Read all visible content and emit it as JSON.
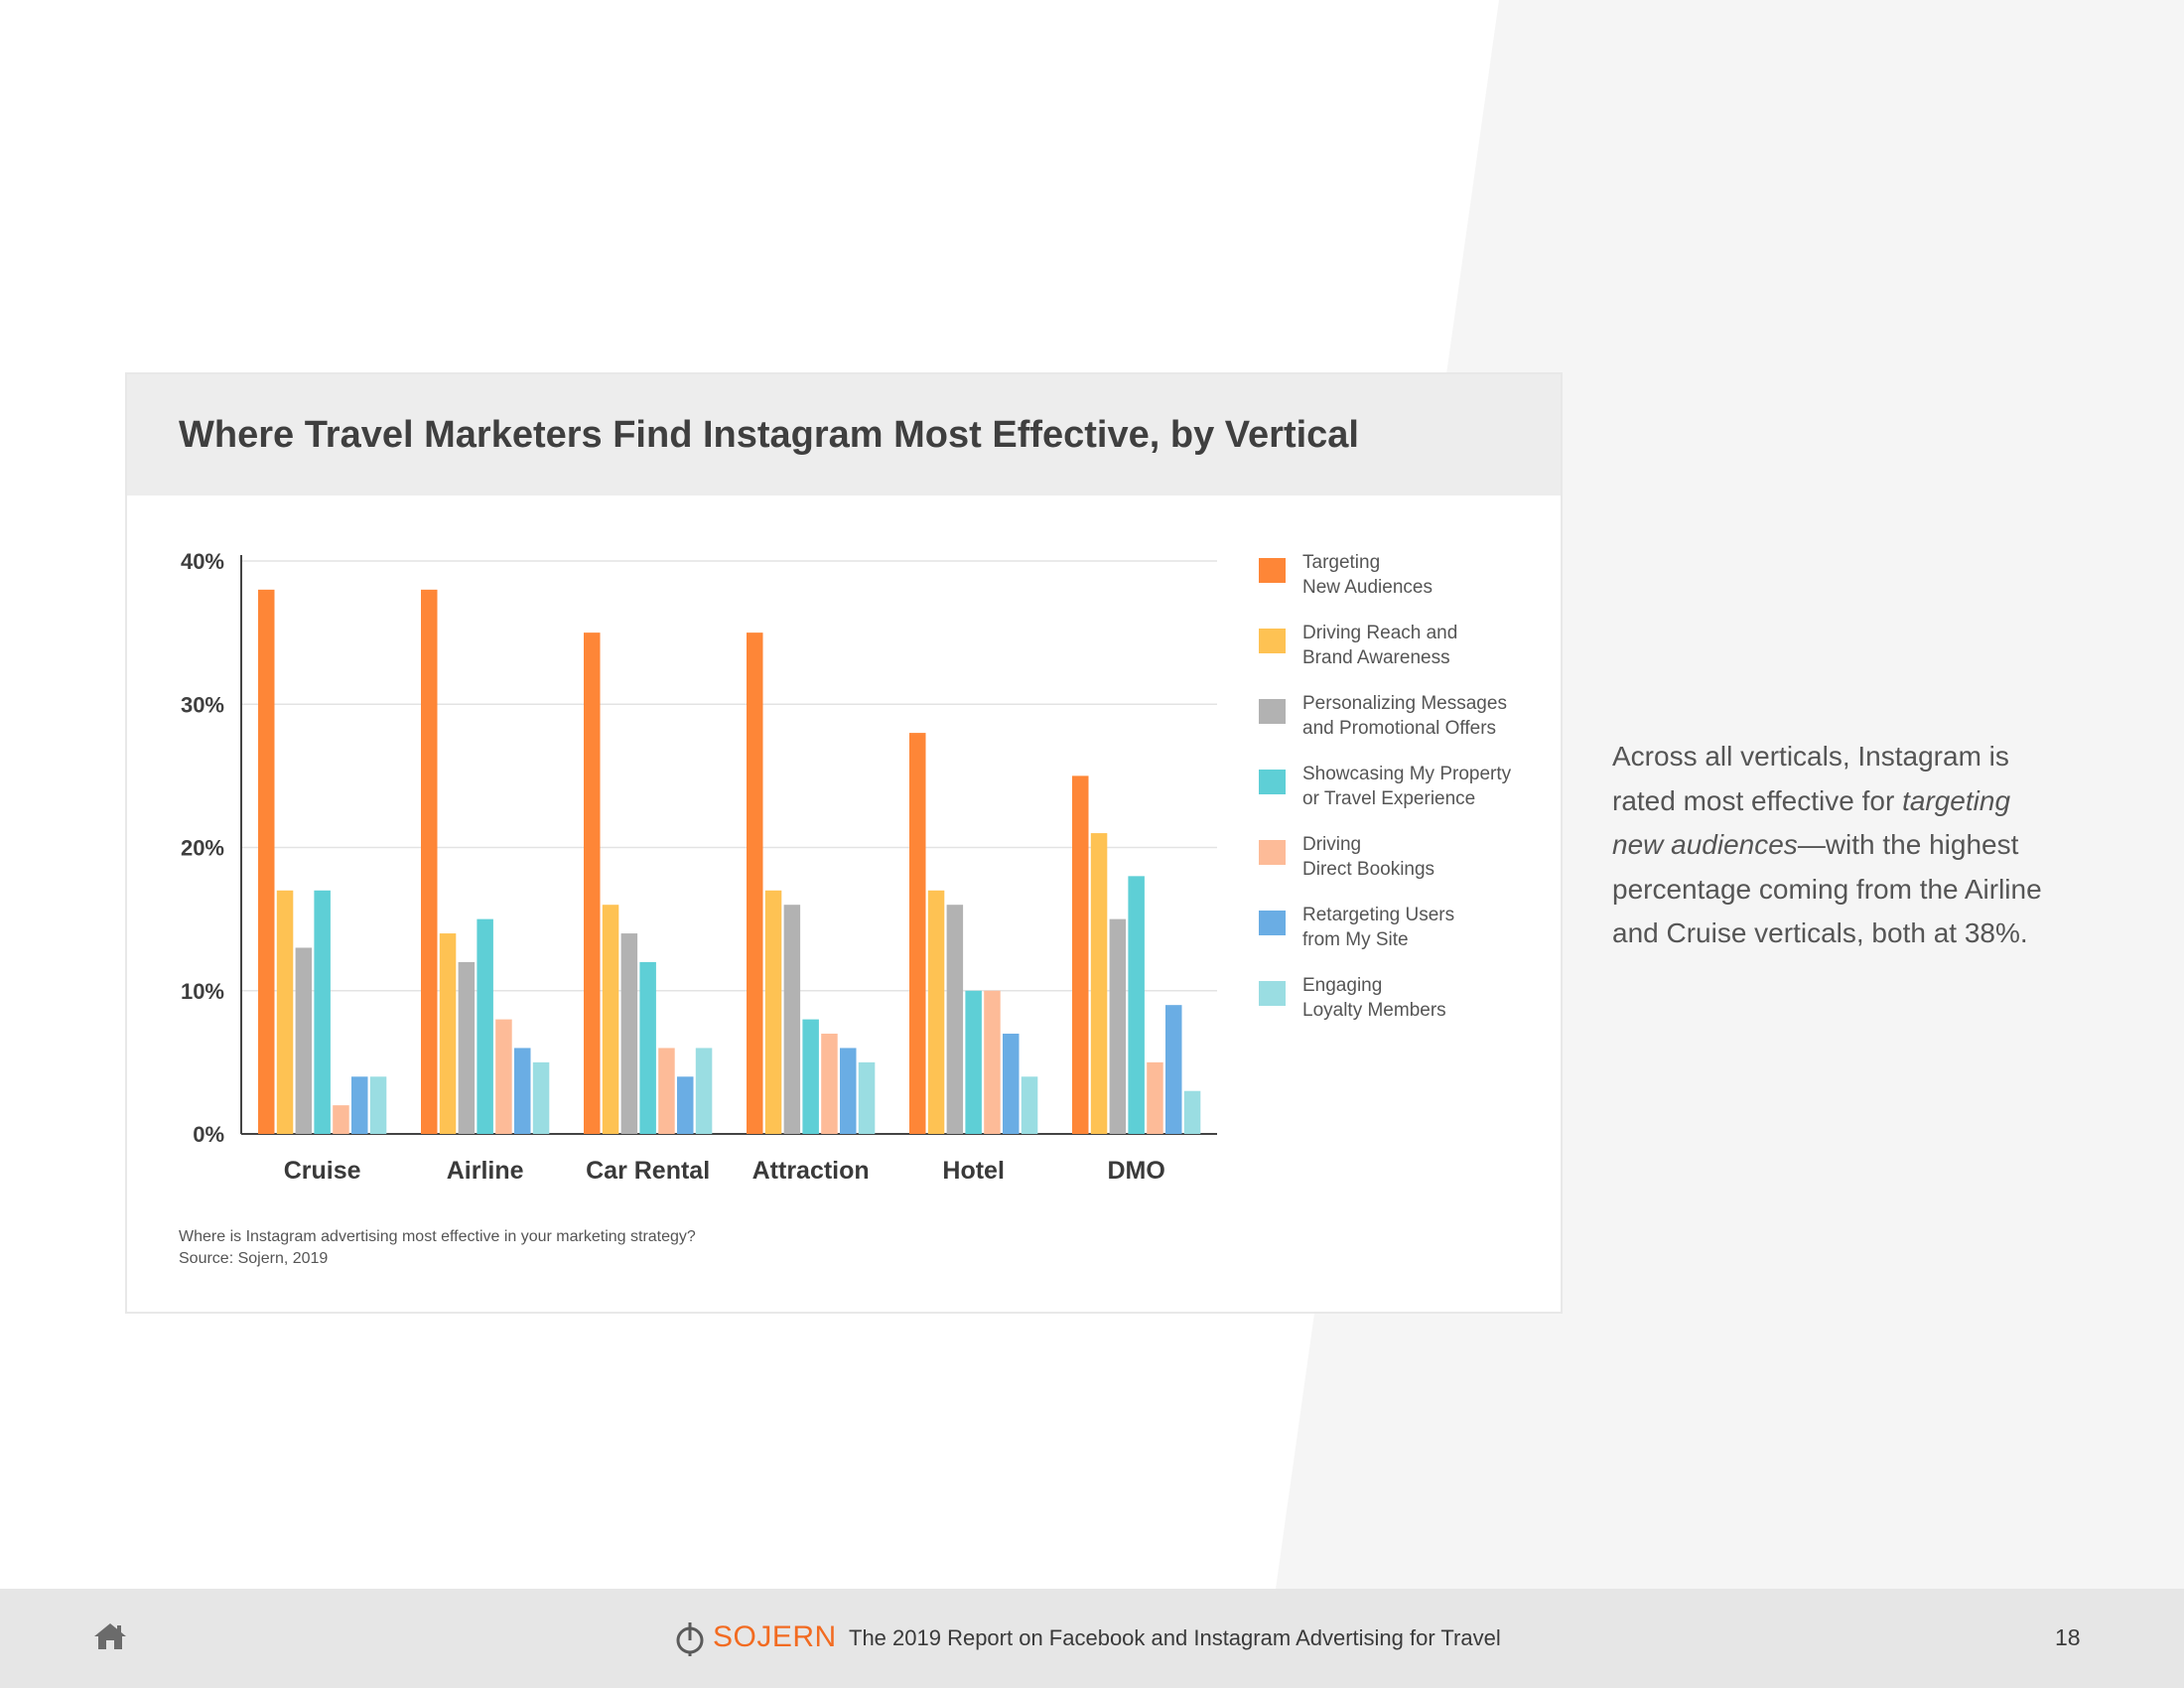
{
  "page": {
    "accent_color": "#f26b21",
    "background_shape_color": "#f5f5f5",
    "number": "18"
  },
  "chart_data": {
    "type": "bar",
    "title": "Where Travel Marketers Find Instagram Most Effective, by Vertical",
    "xlabel": "",
    "ylabel": "",
    "ylim": [
      0,
      40
    ],
    "yticks": [
      0,
      10,
      20,
      30,
      40
    ],
    "ytick_labels": [
      "0%",
      "10%",
      "20%",
      "30%",
      "40%"
    ],
    "grid": true,
    "legend_position": "right",
    "categories": [
      "Cruise",
      "Airline",
      "Car Rental",
      "Attraction",
      "Hotel",
      "DMO"
    ],
    "series": [
      {
        "name": "Targeting New Audiences",
        "lines": [
          "Targeting",
          "New Audiences"
        ],
        "color": "#fe8637",
        "values": [
          38,
          38,
          35,
          35,
          28,
          25
        ]
      },
      {
        "name": "Driving Reach and Brand Awareness",
        "lines": [
          "Driving Reach and",
          "Brand Awareness"
        ],
        "color": "#fec253",
        "values": [
          17,
          14,
          16,
          17,
          17,
          21
        ]
      },
      {
        "name": "Personalizing Messages and Promotional Offers",
        "lines": [
          "Personalizing Messages",
          "and Promotional Offers"
        ],
        "color": "#b2b2b2",
        "values": [
          13,
          12,
          14,
          16,
          16,
          15
        ]
      },
      {
        "name": "Showcasing My Property or Travel Experience",
        "lines": [
          "Showcasing My Property",
          "or Travel Experience"
        ],
        "color": "#5ecfd6",
        "values": [
          17,
          15,
          12,
          8,
          10,
          18
        ]
      },
      {
        "name": "Driving Direct Bookings",
        "lines": [
          "Driving",
          "Direct Bookings"
        ],
        "color": "#fdbb98",
        "values": [
          2,
          8,
          6,
          7,
          10,
          5
        ]
      },
      {
        "name": "Retargeting Users from My Site",
        "lines": [
          "Retargeting Users",
          "from My Site"
        ],
        "color": "#6aade4",
        "values": [
          4,
          6,
          4,
          6,
          7,
          9
        ]
      },
      {
        "name": "Engaging Loyalty Members",
        "lines": [
          "Engaging",
          "Loyalty Members"
        ],
        "color": "#9adde2",
        "values": [
          4,
          5,
          6,
          5,
          4,
          3
        ]
      }
    ],
    "footnote": {
      "question": "Where is Instagram advertising most effective in your marketing strategy?",
      "source": "Source: Sojern, 2019"
    }
  },
  "side_text": {
    "part1": "Across all verticals, Instagram is rated most effective for ",
    "emphasis": "targeting new audiences",
    "part2": "—with the highest percentage coming from the Airline and Cruise verticals, both at 38%."
  },
  "footer": {
    "icon": "home-icon",
    "brand_icon": "sojern-logo-icon",
    "brand": "SOJERN",
    "title": "The 2019 Report on Facebook and Instagram Advertising for Travel",
    "page_number": "18"
  }
}
